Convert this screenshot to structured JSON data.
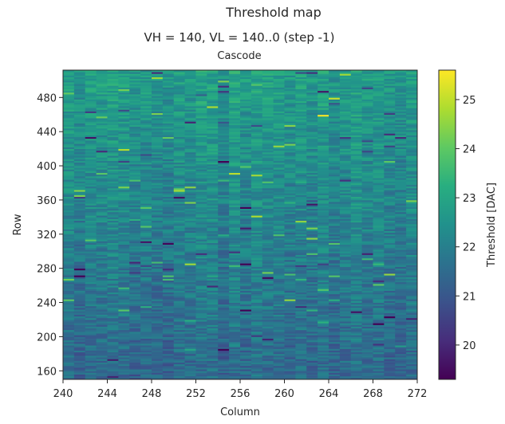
{
  "header": {
    "title": "Threshold map",
    "subtitle": "VH = 140, VL = 140..0 (step -1)",
    "section": "Cascode"
  },
  "chart_data": {
    "type": "heatmap",
    "title": "Threshold map",
    "subtitle": "VH = 140, VL = 140..0 (step -1)",
    "section_label": "Cascode",
    "xlabel": "Column",
    "ylabel": "Row",
    "colorbar_label": "Threshold [DAC]",
    "xlim": [
      240,
      272
    ],
    "ylim": [
      150,
      512
    ],
    "x_ticks": [
      240,
      244,
      248,
      252,
      256,
      260,
      264,
      268,
      272
    ],
    "y_ticks": [
      160,
      200,
      240,
      280,
      320,
      360,
      400,
      440,
      480
    ],
    "x_tick_labels": [
      "240",
      "244",
      "248",
      "252",
      "256",
      "260",
      "264",
      "268",
      "272"
    ],
    "y_tick_labels": [
      "160",
      "200",
      "240",
      "280",
      "320",
      "360",
      "400",
      "440",
      "480"
    ],
    "color_range": [
      19.3,
      25.6
    ],
    "colorbar_ticks": [
      20,
      21,
      22,
      23,
      24,
      25
    ],
    "colorbar_tick_labels": [
      "20",
      "21",
      "22",
      "23",
      "24",
      "25"
    ],
    "colormap": "viridis",
    "typical_value_range": [
      21.0,
      23.5
    ],
    "note_rows": "values per pixel approx. 21–23.5 DAC, lower rows (~150–260) slightly lower (~21–22), upper rows (~400–512) ~22.5–23"
  }
}
